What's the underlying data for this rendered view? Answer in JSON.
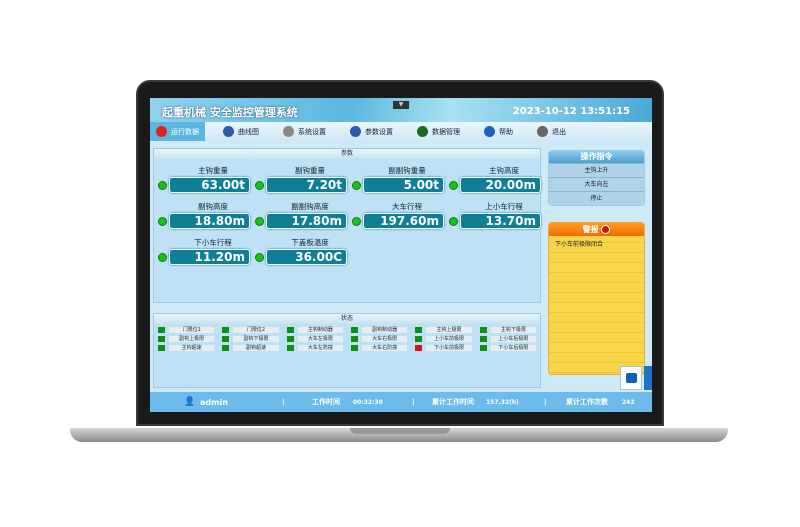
{
  "header": {
    "title": "起重机械 安全监控管理系统",
    "datetime": "2023-10-12 13:51:15"
  },
  "nav": [
    {
      "label": "运行数据",
      "icon": "record-icon",
      "active": true
    },
    {
      "label": "曲线图",
      "icon": "chart-monitor-icon"
    },
    {
      "label": "系统设置",
      "icon": "gear-icon"
    },
    {
      "label": "参数设置",
      "icon": "monitor-icon"
    },
    {
      "label": "数据管理",
      "icon": "data-screen-icon"
    },
    {
      "label": "帮助",
      "icon": "help-icon"
    },
    {
      "label": "退出",
      "icon": "close-icon"
    }
  ],
  "params": {
    "title": "参数",
    "items": [
      {
        "label": "主钩重量",
        "value": "63.00t"
      },
      {
        "label": "副钩重量",
        "value": "7.20t"
      },
      {
        "label": "副副钩重量",
        "value": "5.00t"
      },
      {
        "label": "主钩高度",
        "value": "20.00m"
      },
      {
        "label": "副钩高度",
        "value": "18.80m"
      },
      {
        "label": "副副钩高度",
        "value": "17.80m"
      },
      {
        "label": "大车行程",
        "value": "197.60m"
      },
      {
        "label": "上小车行程",
        "value": "13.70m"
      },
      {
        "label": "下小车行程",
        "value": "11.20m"
      },
      {
        "label": "下盖板温度",
        "value": "36.00C"
      }
    ]
  },
  "status": {
    "title": "状态",
    "items": [
      {
        "label": "门限位1",
        "state": "ok"
      },
      {
        "label": "门限位2",
        "state": "ok"
      },
      {
        "label": "主钩制动器",
        "state": "ok"
      },
      {
        "label": "副钩制动器",
        "state": "ok"
      },
      {
        "label": "主钩上极限",
        "state": "ok"
      },
      {
        "label": "主钩下极限",
        "state": "ok"
      },
      {
        "label": "副钩上极限",
        "state": "ok"
      },
      {
        "label": "副钩下极限",
        "state": "ok"
      },
      {
        "label": "大车左极限",
        "state": "ok"
      },
      {
        "label": "大车右极限",
        "state": "ok"
      },
      {
        "label": "上小车前极限",
        "state": "ok"
      },
      {
        "label": "上小车后极限",
        "state": "ok"
      },
      {
        "label": "主钩超速",
        "state": "ok"
      },
      {
        "label": "副钩超速",
        "state": "ok"
      },
      {
        "label": "大车左防撞",
        "state": "ok"
      },
      {
        "label": "大车右防撞",
        "state": "ok"
      },
      {
        "label": "下小车前极限",
        "state": "alarm"
      },
      {
        "label": "下小车后极限",
        "state": "ok"
      }
    ]
  },
  "colors": {
    "ok": "#109010",
    "alarm": "#e01010"
  },
  "operations": {
    "title": "操作指令",
    "items": [
      "主钩上升",
      "大车向左",
      "停止"
    ]
  },
  "alarm": {
    "title": "警报",
    "items": [
      "下小车前极限闭合"
    ]
  },
  "footer": {
    "user": "admin",
    "work_time_label": "工作时间",
    "work_time": "00:32:30",
    "total_time_label": "累计工作时间",
    "total_time": "157.32(h)",
    "count_label": "累计工作次数",
    "count": "242"
  }
}
